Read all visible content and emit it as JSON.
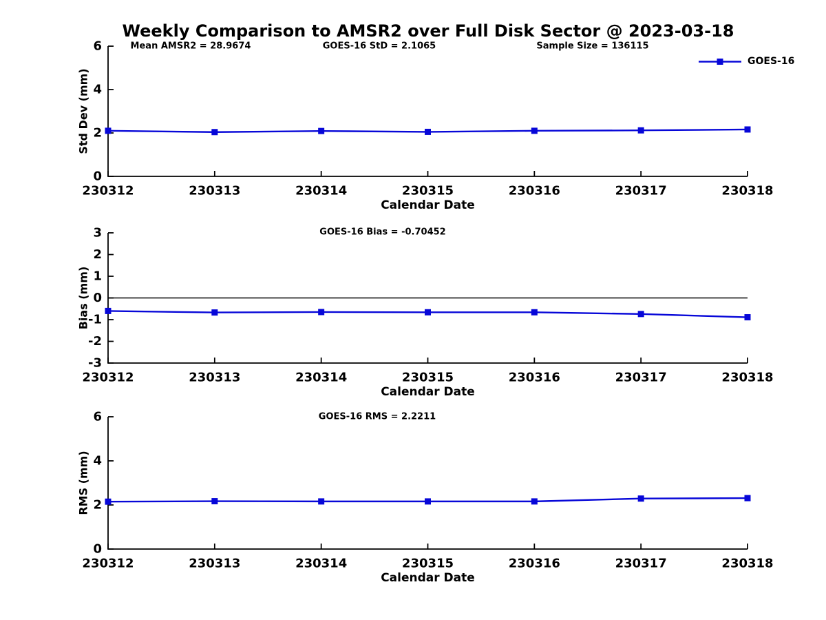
{
  "title": "Weekly Comparison to AMSR2 over Full Disk Sector @ 2023-03-18",
  "legend": {
    "label": "GOES-16"
  },
  "colors": {
    "series": "#0707d8",
    "axis": "#000000",
    "text": "#000000",
    "zero_line": "#000000",
    "background": "#ffffff"
  },
  "stats": {
    "mean_amsr2": 28.9674,
    "goes16_std": 2.1065,
    "sample_size": 136115,
    "goes16_bias": -0.70452,
    "goes16_rms": 2.2211
  },
  "chart_data": [
    {
      "type": "line",
      "categories": [
        "230312",
        "230313",
        "230314",
        "230315",
        "230316",
        "230317",
        "230318"
      ],
      "series": [
        {
          "name": "GOES-16",
          "marker": "square",
          "values": [
            2.1,
            2.04,
            2.09,
            2.05,
            2.1,
            2.12,
            2.16
          ]
        }
      ],
      "annotations": [
        "Mean AMSR2 = 28.9674",
        "GOES-16 StD = 2.1065",
        "Sample Size = 136115"
      ],
      "xlabel": "Calendar Date",
      "ylabel": "Std Dev (mm)",
      "ylim": [
        0,
        6
      ],
      "yticks": [
        0,
        2,
        4,
        6
      ],
      "grid": false,
      "zero_line": false,
      "legend_position": "top-right-outside"
    },
    {
      "type": "line",
      "categories": [
        "230312",
        "230313",
        "230314",
        "230315",
        "230316",
        "230317",
        "230318"
      ],
      "series": [
        {
          "name": "GOES-16",
          "marker": "square",
          "values": [
            -0.6,
            -0.67,
            -0.65,
            -0.66,
            -0.66,
            -0.74,
            -0.89
          ]
        }
      ],
      "annotations": [
        "GOES-16 Bias  = -0.70452"
      ],
      "xlabel": "Calendar Date",
      "ylabel": "Bias (mm)",
      "ylim": [
        -3,
        3
      ],
      "yticks": [
        -3,
        -2,
        -1,
        0,
        1,
        2,
        3
      ],
      "grid": false,
      "zero_line": true
    },
    {
      "type": "line",
      "categories": [
        "230312",
        "230313",
        "230314",
        "230315",
        "230316",
        "230317",
        "230318"
      ],
      "series": [
        {
          "name": "GOES-16",
          "marker": "square",
          "values": [
            2.15,
            2.17,
            2.16,
            2.16,
            2.16,
            2.29,
            2.31
          ]
        }
      ],
      "annotations": [
        "GOES-16 RMS = 2.2211"
      ],
      "xlabel": "Calendar Date",
      "ylabel": "RMS (mm)",
      "ylim": [
        0,
        6
      ],
      "yticks": [
        0,
        2,
        4,
        6
      ],
      "grid": false,
      "zero_line": false
    }
  ]
}
